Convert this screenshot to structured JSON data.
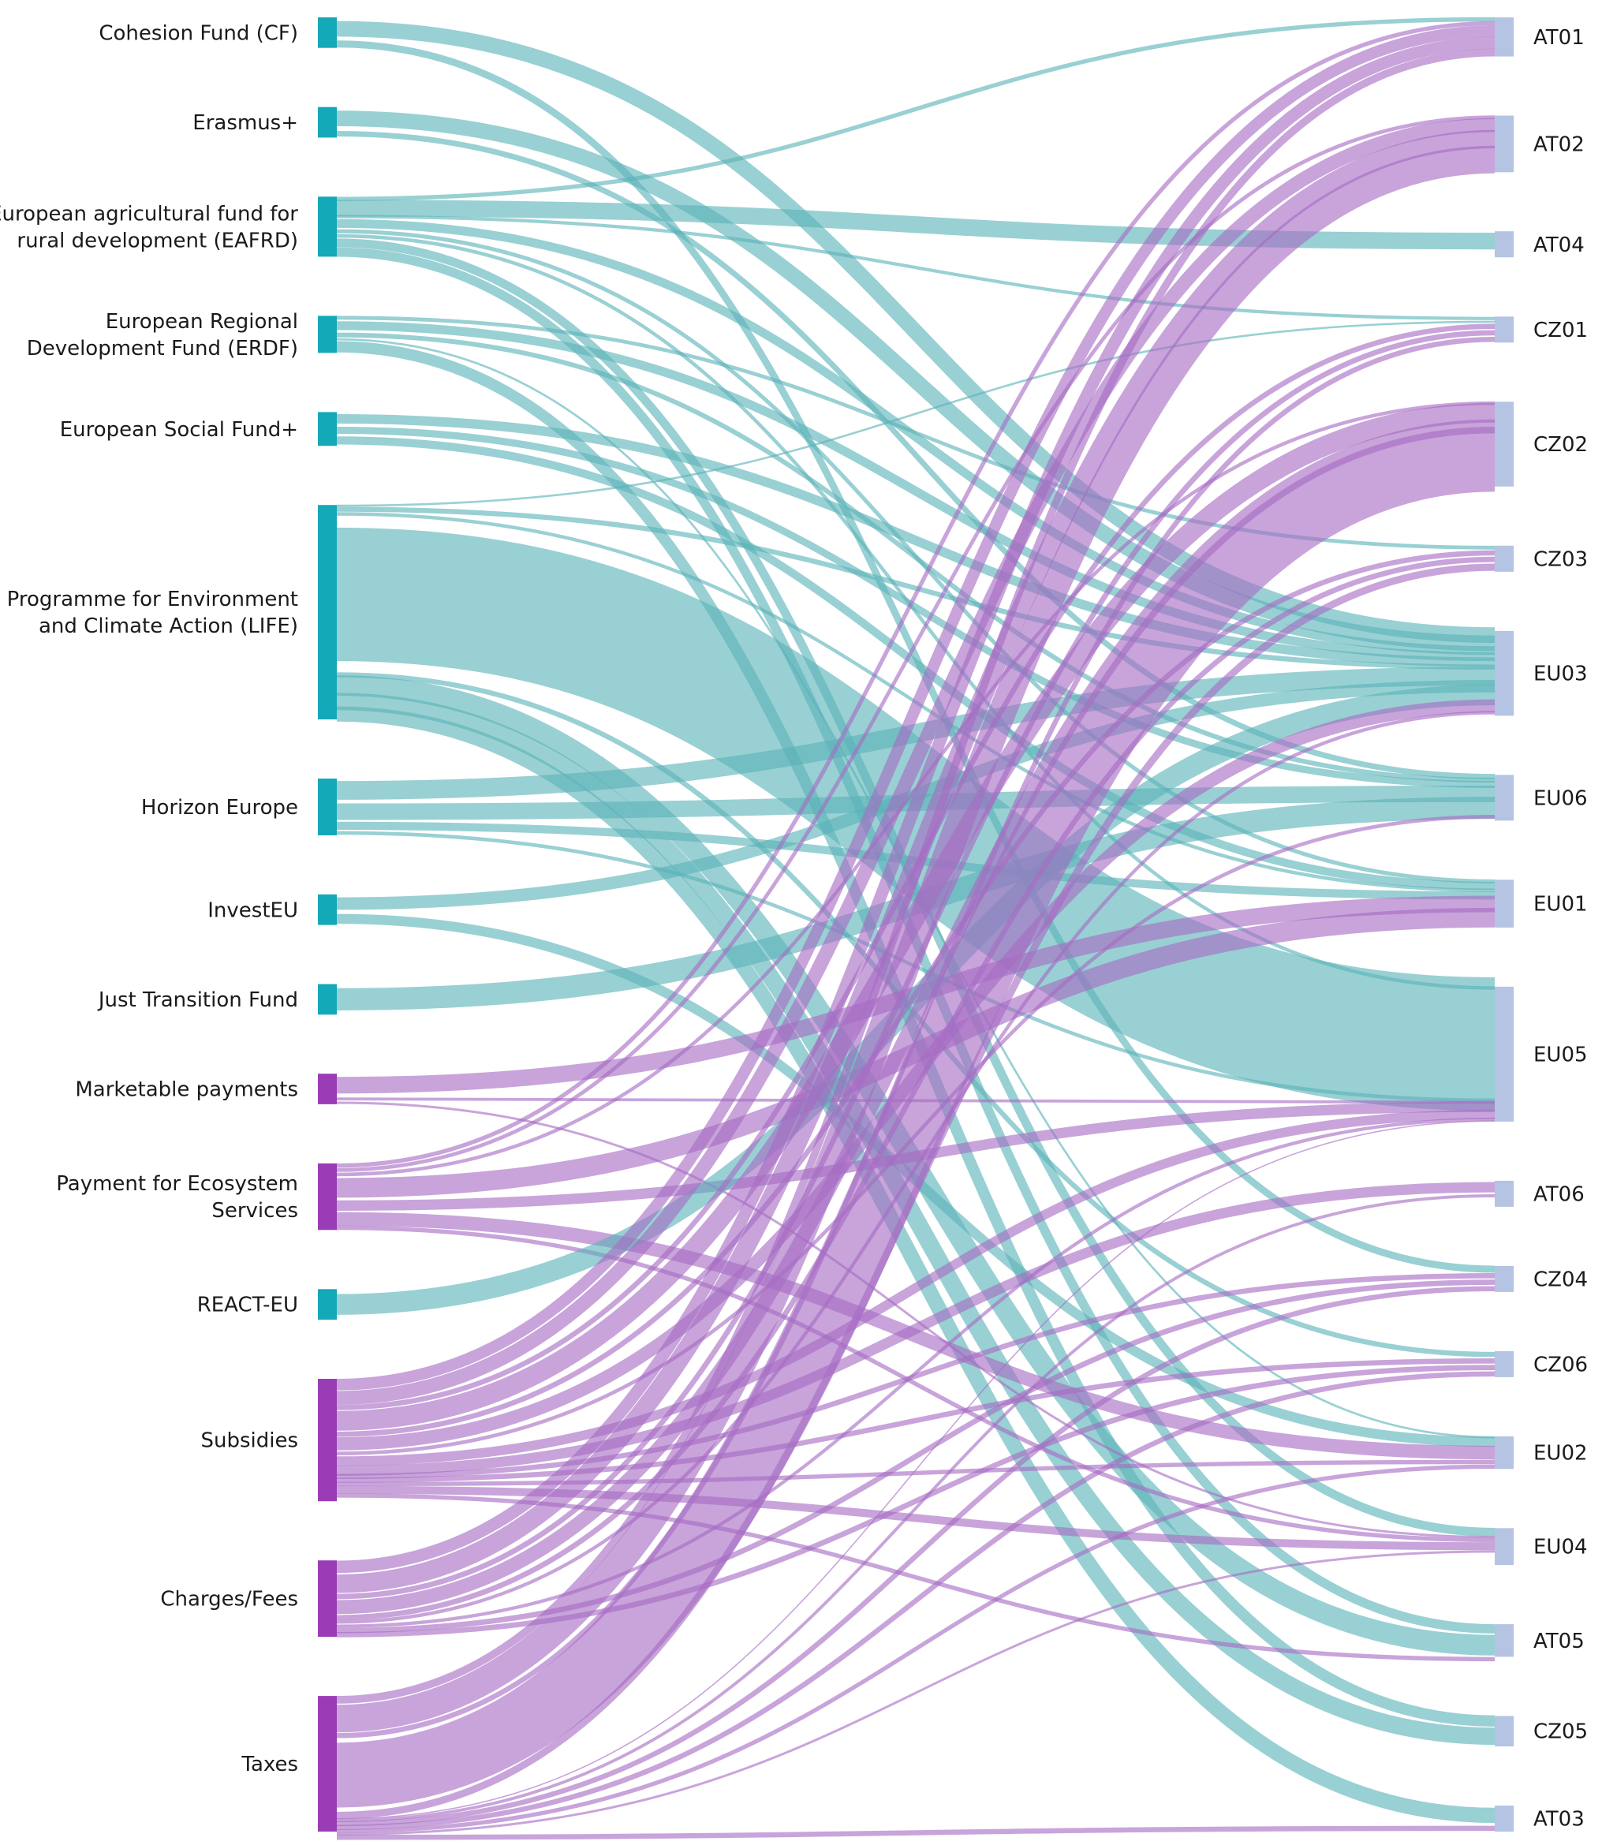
{
  "chart_data": {
    "type": "sankey",
    "title": "",
    "colors": {
      "eu_source": "#14a9b8",
      "eu_link": "#5ab3b8",
      "national_source": "#9b3cb7",
      "national_link": "#a66cc3",
      "target": "#b4c4e2"
    },
    "sources": [
      {
        "id": "CF",
        "lines": [
          "Cohesion Fund (CF)"
        ],
        "value": 2,
        "group": "eu"
      },
      {
        "id": "ERASMUS",
        "lines": [
          "Erasmus+"
        ],
        "value": 2,
        "group": "eu"
      },
      {
        "id": "EAFRD",
        "lines": [
          "European agricultural fund for",
          "rural development (EAFRD)"
        ],
        "value": 6.5,
        "group": "eu"
      },
      {
        "id": "ERDF",
        "lines": [
          "European Regional",
          "Development Fund (ERDF)"
        ],
        "value": 3,
        "group": "eu"
      },
      {
        "id": "ESF",
        "lines": [
          "European Social Fund+"
        ],
        "value": 2.5,
        "group": "eu"
      },
      {
        "id": "LIFE",
        "lines": [
          "Programme for Environment",
          "and Climate Action (LIFE)"
        ],
        "value": 30,
        "group": "eu"
      },
      {
        "id": "HORIZON",
        "lines": [
          "Horizon Europe"
        ],
        "value": 6,
        "group": "eu"
      },
      {
        "id": "INVESTEU",
        "lines": [
          "InvestEU"
        ],
        "value": 2,
        "group": "eu"
      },
      {
        "id": "JTF",
        "lines": [
          "Just Transition Fund"
        ],
        "value": 2,
        "group": "eu"
      },
      {
        "id": "MARKET",
        "lines": [
          "Marketable payments"
        ],
        "value": 2,
        "group": "national"
      },
      {
        "id": "PES",
        "lines": [
          "Payment for Ecosystem",
          "Services"
        ],
        "value": 7.5,
        "group": "national"
      },
      {
        "id": "REACT",
        "lines": [
          "REACT-EU"
        ],
        "value": 2,
        "group": "eu"
      },
      {
        "id": "SUBS",
        "lines": [
          "Subsidies"
        ],
        "value": 16,
        "group": "national"
      },
      {
        "id": "CHARGES",
        "lines": [
          "Charges/Fees"
        ],
        "value": 9,
        "group": "national"
      },
      {
        "id": "TAXES",
        "lines": [
          "Taxes"
        ],
        "value": 18,
        "group": "national"
      }
    ],
    "targets": [
      {
        "id": "AT01",
        "label": "AT01",
        "value": 5
      },
      {
        "id": "AT02",
        "label": "AT02",
        "value": 9
      },
      {
        "id": "AT04",
        "label": "AT04",
        "value": 2
      },
      {
        "id": "CZ01",
        "label": "CZ01",
        "value": 2
      },
      {
        "id": "CZ02",
        "label": "CZ02",
        "value": 15.5
      },
      {
        "id": "CZ03",
        "label": "CZ03",
        "value": 2
      },
      {
        "id": "EU03",
        "label": "EU03",
        "value": 15.5
      },
      {
        "id": "EU06",
        "label": "EU06",
        "value": 6.5
      },
      {
        "id": "EU01",
        "label": "EU01",
        "value": 7
      },
      {
        "id": "EU05",
        "label": "EU05",
        "value": 27
      },
      {
        "id": "AT06",
        "label": "AT06",
        "value": 2
      },
      {
        "id": "CZ04",
        "label": "CZ04",
        "value": 2
      },
      {
        "id": "CZ06",
        "label": "CZ06",
        "value": 2
      },
      {
        "id": "EU02",
        "label": "EU02",
        "value": 3.5
      },
      {
        "id": "EU04",
        "label": "EU04",
        "value": 4.5
      },
      {
        "id": "AT05",
        "label": "AT05",
        "value": 3.5
      },
      {
        "id": "CZ05",
        "label": "CZ05",
        "value": 3
      },
      {
        "id": "AT03",
        "label": "AT03",
        "value": 2
      }
    ],
    "links": [
      {
        "source": "CF",
        "target": "EU03",
        "value": 1.5
      },
      {
        "source": "CF",
        "target": "CZ04",
        "value": 0.5
      },
      {
        "source": "ERASMUS",
        "target": "EU03",
        "value": 1.5
      },
      {
        "source": "ERASMUS",
        "target": "EU06",
        "value": 0.5
      },
      {
        "source": "EAFRD",
        "target": "AT01",
        "value": 0.5
      },
      {
        "source": "EAFRD",
        "target": "AT04",
        "value": 1.5
      },
      {
        "source": "EAFRD",
        "target": "CZ01",
        "value": 0.3
      },
      {
        "source": "EAFRD",
        "target": "EU03",
        "value": 1.2
      },
      {
        "source": "EAFRD",
        "target": "EU01",
        "value": 0.5
      },
      {
        "source": "EAFRD",
        "target": "EU05",
        "value": 0.5
      },
      {
        "source": "EAFRD",
        "target": "EU04",
        "value": 1
      },
      {
        "source": "EAFRD",
        "target": "AT05",
        "value": 1
      },
      {
        "source": "ERDF",
        "target": "CZ03",
        "value": 0.3
      },
      {
        "source": "ERDF",
        "target": "EU03",
        "value": 1
      },
      {
        "source": "ERDF",
        "target": "EU06",
        "value": 0.5
      },
      {
        "source": "ERDF",
        "target": "EU02",
        "value": 0.2
      },
      {
        "source": "ERDF",
        "target": "CZ05",
        "value": 1
      },
      {
        "source": "ESF",
        "target": "EU03",
        "value": 1
      },
      {
        "source": "ESF",
        "target": "EU06",
        "value": 0.7
      },
      {
        "source": "ESF",
        "target": "EU01",
        "value": 0.8
      },
      {
        "source": "LIFE",
        "target": "CZ01",
        "value": 0.2
      },
      {
        "source": "LIFE",
        "target": "EU05",
        "value": 22
      },
      {
        "source": "LIFE",
        "target": "EU03",
        "value": 0.8
      },
      {
        "source": "LIFE",
        "target": "EU01",
        "value": 0.5
      },
      {
        "source": "LIFE",
        "target": "CZ06",
        "value": 0.5
      },
      {
        "source": "LIFE",
        "target": "AT05",
        "value": 2.5
      },
      {
        "source": "LIFE",
        "target": "CZ05",
        "value": 2
      },
      {
        "source": "LIFE",
        "target": "AT03",
        "value": 1.5
      },
      {
        "source": "HORIZON",
        "target": "EU03",
        "value": 2.5
      },
      {
        "source": "HORIZON",
        "target": "EU06",
        "value": 2
      },
      {
        "source": "HORIZON",
        "target": "EU01",
        "value": 1
      },
      {
        "source": "HORIZON",
        "target": "EU05",
        "value": 0.5
      },
      {
        "source": "INVESTEU",
        "target": "EU03",
        "value": 1.2
      },
      {
        "source": "INVESTEU",
        "target": "EU02",
        "value": 0.8
      },
      {
        "source": "JTF",
        "target": "EU06",
        "value": 2
      },
      {
        "source": "MARKET",
        "target": "EU01",
        "value": 1.5
      },
      {
        "source": "MARKET",
        "target": "EU05",
        "value": 0.3
      },
      {
        "source": "MARKET",
        "target": "EU04",
        "value": 0.2
      },
      {
        "source": "PES",
        "target": "AT01",
        "value": 0.5
      },
      {
        "source": "PES",
        "target": "AT02",
        "value": 0.5
      },
      {
        "source": "PES",
        "target": "CZ02",
        "value": 0.5
      },
      {
        "source": "PES",
        "target": "EU01",
        "value": 2.5
      },
      {
        "source": "PES",
        "target": "EU05",
        "value": 1.5
      },
      {
        "source": "PES",
        "target": "EU02",
        "value": 1.5
      },
      {
        "source": "PES",
        "target": "EU04",
        "value": 0.5
      },
      {
        "source": "REACT",
        "target": "EU03",
        "value": 2
      },
      {
        "source": "SUBS",
        "target": "AT01",
        "value": 1.5
      },
      {
        "source": "SUBS",
        "target": "AT02",
        "value": 2
      },
      {
        "source": "SUBS",
        "target": "CZ01",
        "value": 0.5
      },
      {
        "source": "SUBS",
        "target": "CZ02",
        "value": 3
      },
      {
        "source": "SUBS",
        "target": "CZ03",
        "value": 0.5
      },
      {
        "source": "SUBS",
        "target": "EU03",
        "value": 2
      },
      {
        "source": "SUBS",
        "target": "EU06",
        "value": 0.5
      },
      {
        "source": "SUBS",
        "target": "EU05",
        "value": 1.5
      },
      {
        "source": "SUBS",
        "target": "AT06",
        "value": 1
      },
      {
        "source": "SUBS",
        "target": "CZ04",
        "value": 0.5
      },
      {
        "source": "SUBS",
        "target": "CZ06",
        "value": 0.5
      },
      {
        "source": "SUBS",
        "target": "EU02",
        "value": 0.5
      },
      {
        "source": "SUBS",
        "target": "EU04",
        "value": 1
      },
      {
        "source": "SUBS",
        "target": "AT05",
        "value": 0.5
      },
      {
        "source": "CHARGES",
        "target": "AT01",
        "value": 1.5
      },
      {
        "source": "CHARGES",
        "target": "AT02",
        "value": 2.5
      },
      {
        "source": "CHARGES",
        "target": "CZ01",
        "value": 0.5
      },
      {
        "source": "CHARGES",
        "target": "CZ02",
        "value": 2
      },
      {
        "source": "CHARGES",
        "target": "CZ03",
        "value": 0.5
      },
      {
        "source": "CHARGES",
        "target": "EU03",
        "value": 0.5
      },
      {
        "source": "CHARGES",
        "target": "EU05",
        "value": 0.5
      },
      {
        "source": "CHARGES",
        "target": "CZ04",
        "value": 0.5
      },
      {
        "source": "CHARGES",
        "target": "CZ06",
        "value": 0.5
      },
      {
        "source": "TAXES",
        "target": "AT01",
        "value": 1
      },
      {
        "source": "TAXES",
        "target": "AT02",
        "value": 4
      },
      {
        "source": "TAXES",
        "target": "CZ01",
        "value": 0.5
      },
      {
        "source": "TAXES",
        "target": "CZ02",
        "value": 10
      },
      {
        "source": "TAXES",
        "target": "CZ03",
        "value": 0.7
      },
      {
        "source": "TAXES",
        "target": "EU05",
        "value": 0.2
      },
      {
        "source": "TAXES",
        "target": "AT06",
        "value": 0.3
      },
      {
        "source": "TAXES",
        "target": "CZ04",
        "value": 0.5
      },
      {
        "source": "TAXES",
        "target": "CZ06",
        "value": 0.5
      },
      {
        "source": "TAXES",
        "target": "EU02",
        "value": 0.5
      },
      {
        "source": "TAXES",
        "target": "EU04",
        "value": 0.3
      },
      {
        "source": "TAXES",
        "target": "AT03",
        "value": 0.5
      }
    ]
  }
}
